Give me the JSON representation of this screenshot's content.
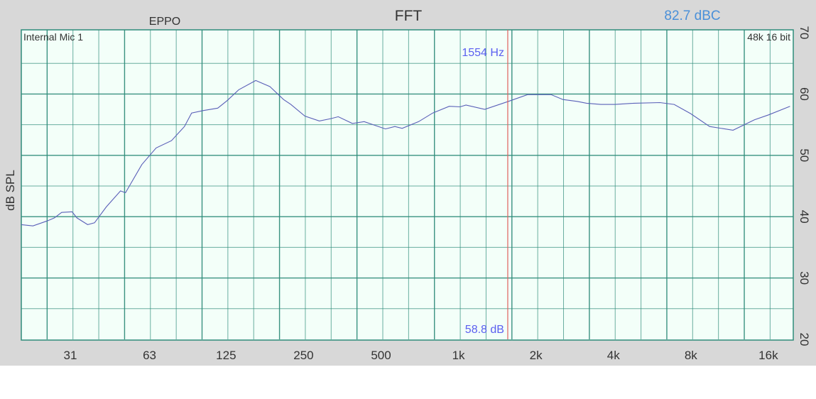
{
  "header": {
    "title": "FFT",
    "device": "EPPO",
    "level_readout": "82.7 dBC",
    "input_label": "Internal Mic 1",
    "format_label": "48k 16 bit"
  },
  "cursor": {
    "frequency_label": "1554 Hz",
    "level_label": "58.8 dB",
    "frequency_hz": 1554,
    "level_db": 58.8
  },
  "colors": {
    "background": "#d8d8d8",
    "plot_background": "#f3fff9",
    "grid": "#2f8c7a",
    "curve": "#5a5fb8",
    "cursor": "#e06060",
    "cursor_text": "#5b5ff0",
    "level_readout": "#4a90d9"
  },
  "chart_data": {
    "type": "line",
    "title": "FFT",
    "xlabel": "",
    "ylabel": "dB SPL",
    "x_scale": "log",
    "xlim": [
      20,
      20000
    ],
    "ylim": [
      20,
      70
    ],
    "grid": true,
    "x_ticks": [
      {
        "value": 31,
        "label": "31"
      },
      {
        "value": 63,
        "label": "63"
      },
      {
        "value": 125,
        "label": "125"
      },
      {
        "value": 250,
        "label": "250"
      },
      {
        "value": 500,
        "label": "500"
      },
      {
        "value": 1000,
        "label": "1k"
      },
      {
        "value": 2000,
        "label": "2k"
      },
      {
        "value": 4000,
        "label": "4k"
      },
      {
        "value": 8000,
        "label": "8k"
      },
      {
        "value": 16000,
        "label": "16k"
      }
    ],
    "y_ticks": [
      {
        "value": 70,
        "label": "70"
      },
      {
        "value": 60,
        "label": "60"
      },
      {
        "value": 50,
        "label": "50"
      },
      {
        "value": 40,
        "label": "40"
      },
      {
        "value": 30,
        "label": "30"
      },
      {
        "value": 20,
        "label": "20"
      }
    ],
    "series": [
      {
        "x": [
          20,
          22.2,
          25.2,
          26.9,
          28.7,
          31.5,
          32.9,
          36.2,
          38.5,
          42.8,
          48.6,
          50.8,
          58.8,
          66.8,
          76.7,
          86.1,
          91.8,
          102,
          116,
          126,
          140,
          163,
          185,
          209,
          223,
          253,
          288,
          320,
          341,
          387,
          430,
          520,
          566,
          604,
          700,
          794,
          921,
          1014,
          1069,
          1265,
          1563,
          1853,
          2194,
          2290,
          2547,
          2891,
          3148,
          3573,
          4058,
          4799,
          6067,
          6888,
          7981,
          9460,
          11670,
          14130,
          16030,
          19420
        ],
        "y": [
          38.7,
          38.5,
          39.3,
          39.8,
          40.7,
          40.8,
          39.8,
          38.7,
          39.0,
          41.6,
          44.2,
          43.9,
          48.5,
          51.2,
          52.4,
          54.7,
          56.9,
          57.3,
          57.7,
          58.9,
          60.7,
          62.2,
          61.2,
          59.1,
          58.3,
          56.4,
          55.6,
          56.0,
          56.3,
          55.2,
          55.5,
          54.3,
          54.7,
          54.4,
          55.5,
          56.9,
          58.0,
          57.9,
          58.2,
          57.5,
          58.8,
          59.9,
          59.9,
          59.9,
          59.1,
          58.8,
          58.5,
          58.3,
          58.3,
          58.5,
          58.6,
          58.3,
          56.8,
          54.7,
          54.1,
          55.8,
          56.6,
          58.0
        ]
      }
    ]
  }
}
